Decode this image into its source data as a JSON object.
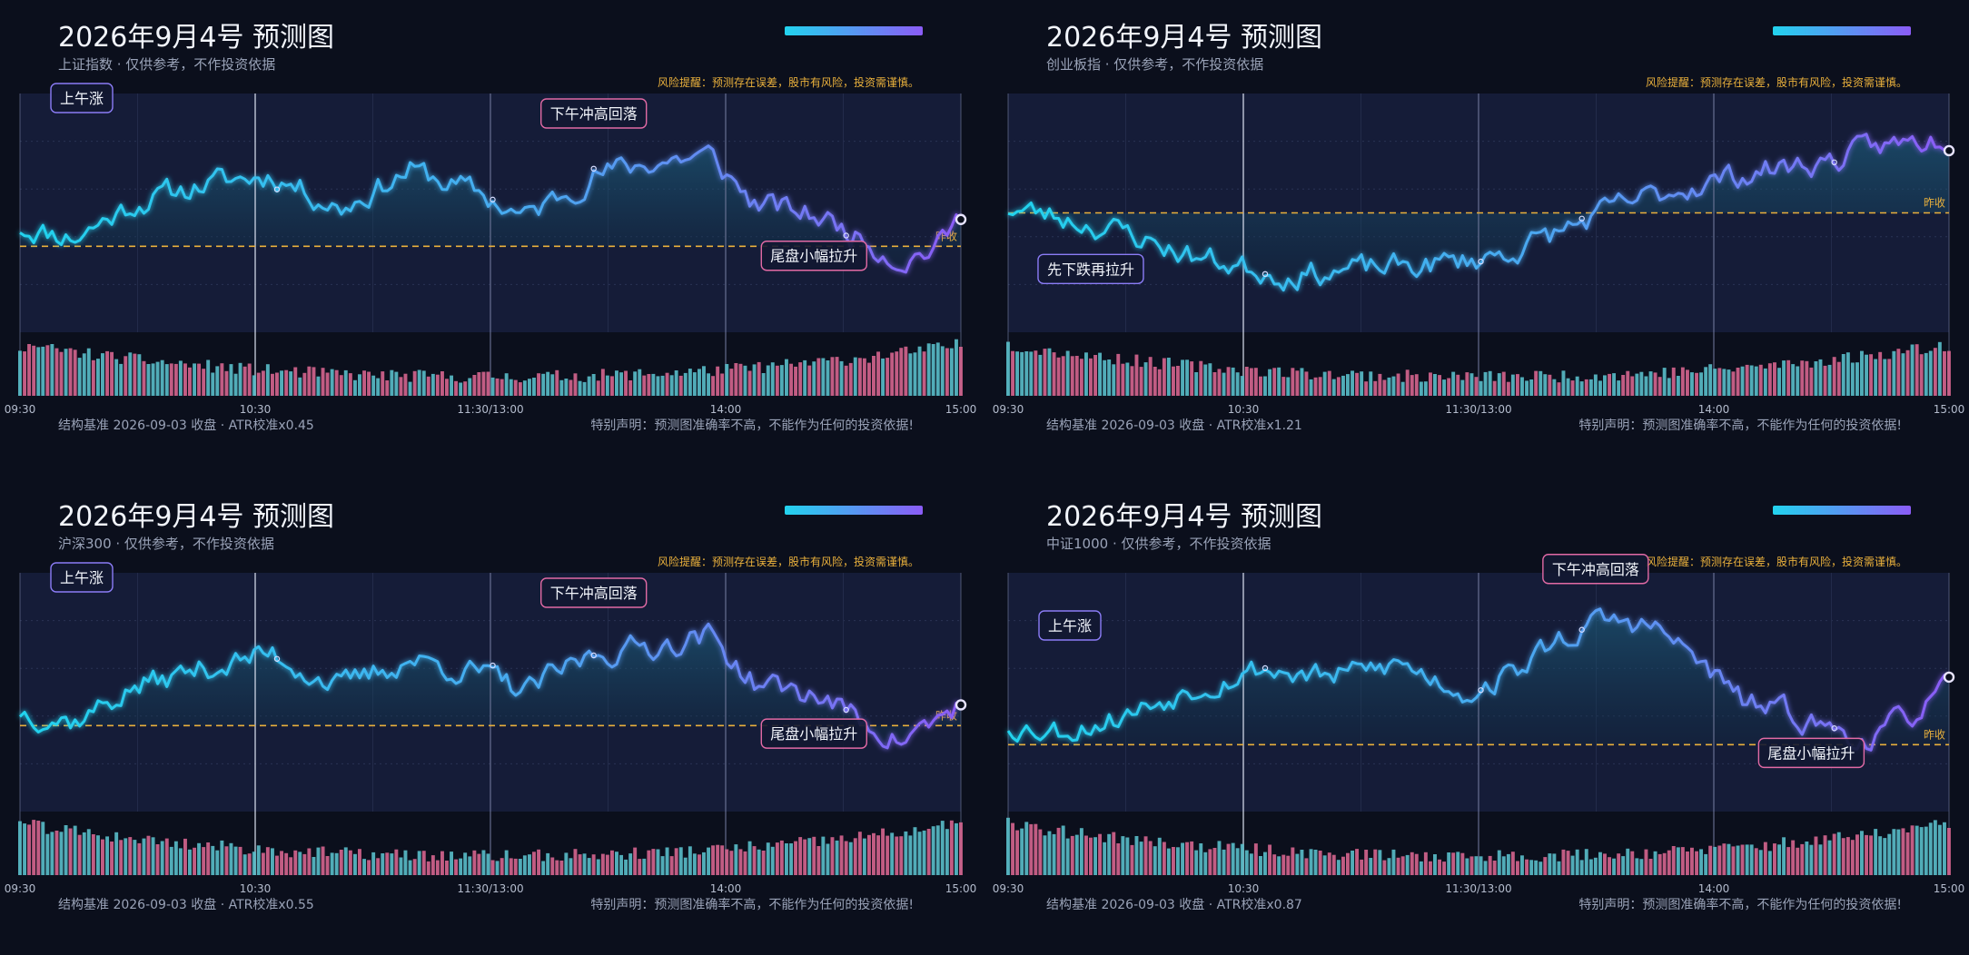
{
  "colors": {
    "background": "#0b0f1c",
    "plot_bg": "#141b34",
    "line_start": "#22d3ee",
    "line_end": "#8b5cf6",
    "prev_close": "#e9b03c",
    "vol_up": "#5ec8d4",
    "vol_down": "#e26a95",
    "ann_up": "#8b7cf6",
    "ann_down": "#e26aa5"
  },
  "x_ticks": [
    "09:30",
    "10:30",
    "11:30/13:00",
    "14:00",
    "15:00"
  ],
  "prev_close_label": "昨收",
  "chart_data": [
    {
      "type": "line",
      "title": "2026年9月4号 预测图",
      "subtitle": "上证指数 · 仅供参考，不作投资依据",
      "risk_note": "风险提醒：预测存在误差，股市有风险，投资需谨慎。",
      "footer_left": "结构基准 2026-09-03 收盘 · ATR校准x0.45",
      "footer_right": "特别声明：预测图准确率不高，不能作为任何的投资依据!",
      "ylim": [
        0,
        100
      ],
      "prev_close": 36,
      "anchors": [
        [
          0,
          44
        ],
        [
          12,
          40
        ],
        [
          25,
          54
        ],
        [
          40,
          62
        ],
        [
          55,
          66
        ],
        [
          70,
          52
        ],
        [
          85,
          68
        ],
        [
          100,
          58
        ],
        [
          110,
          48
        ],
        [
          125,
          66
        ],
        [
          140,
          72
        ],
        [
          150,
          74
        ],
        [
          160,
          54
        ],
        [
          175,
          48
        ],
        [
          185,
          38
        ],
        [
          192,
          30
        ],
        [
          200,
          36
        ],
        [
          205,
          48
        ]
      ],
      "annotations": [
        {
          "label": "上午涨",
          "t": 8,
          "type": "up",
          "pos": "above"
        },
        {
          "label": "下午冲高回落",
          "t": 125,
          "type": "down",
          "pos": "above"
        },
        {
          "label": "尾盘小幅拉升",
          "t": 173,
          "type": "down",
          "pos": "below"
        }
      ],
      "seed": 11
    },
    {
      "type": "line",
      "title": "2026年9月4号 预测图",
      "subtitle": "创业板指 · 仅供参考，不作投资依据",
      "risk_note": "风险提醒：预测存在误差，股市有风险，投资需谨慎。",
      "footer_left": "结构基准 2026-09-03 收盘 · ATR校准x1.21",
      "footer_right": "特别声明：预测图准确率不高，不能作为任何的投资依据!",
      "ylim": [
        0,
        100
      ],
      "prev_close": 50,
      "anchors": [
        [
          0,
          52
        ],
        [
          12,
          48
        ],
        [
          25,
          42
        ],
        [
          40,
          32
        ],
        [
          50,
          28
        ],
        [
          60,
          24
        ],
        [
          75,
          26
        ],
        [
          90,
          28
        ],
        [
          100,
          30
        ],
        [
          110,
          34
        ],
        [
          120,
          42
        ],
        [
          135,
          54
        ],
        [
          150,
          62
        ],
        [
          165,
          68
        ],
        [
          180,
          72
        ],
        [
          190,
          78
        ],
        [
          200,
          80
        ],
        [
          205,
          82
        ]
      ],
      "annotations": [
        {
          "label": "先下跌再拉升",
          "t": 18,
          "type": "up",
          "pos": "below"
        }
      ],
      "seed": 23
    },
    {
      "type": "line",
      "title": "2026年9月4号 预测图",
      "subtitle": "沪深300 · 仅供参考，不作投资依据",
      "risk_note": "风险提醒：预测存在误差，股市有风险，投资需谨慎。",
      "footer_left": "结构基准 2026-09-03 收盘 · ATR校准x0.55",
      "footer_right": "特别声明：预测图准确率不高，不能作为任何的投资依据!",
      "ylim": [
        0,
        100
      ],
      "prev_close": 36,
      "anchors": [
        [
          0,
          42
        ],
        [
          12,
          38
        ],
        [
          25,
          52
        ],
        [
          40,
          60
        ],
        [
          55,
          66
        ],
        [
          70,
          52
        ],
        [
          85,
          64
        ],
        [
          100,
          58
        ],
        [
          110,
          50
        ],
        [
          125,
          66
        ],
        [
          140,
          70
        ],
        [
          150,
          74
        ],
        [
          160,
          54
        ],
        [
          175,
          48
        ],
        [
          185,
          36
        ],
        [
          192,
          30
        ],
        [
          200,
          38
        ],
        [
          205,
          46
        ]
      ],
      "annotations": [
        {
          "label": "上午涨",
          "t": 8,
          "type": "up",
          "pos": "above"
        },
        {
          "label": "下午冲高回落",
          "t": 125,
          "type": "down",
          "pos": "above"
        },
        {
          "label": "尾盘小幅拉升",
          "t": 173,
          "type": "down",
          "pos": "below"
        }
      ],
      "seed": 37
    },
    {
      "type": "line",
      "title": "2026年9月4号 预测图",
      "subtitle": "中证1000 · 仅供参考，不作投资依据",
      "risk_note": "风险提醒：预测存在误差，股市有风险，投资需谨慎。",
      "footer_left": "结构基准 2026-09-03 收盘 · ATR校准x0.87",
      "footer_right": "特别声明：预测图准确率不高，不能作为任何的投资依据!",
      "ylim": [
        0,
        100
      ],
      "prev_close": 28,
      "anchors": [
        [
          0,
          36
        ],
        [
          12,
          34
        ],
        [
          25,
          40
        ],
        [
          40,
          52
        ],
        [
          55,
          60
        ],
        [
          70,
          56
        ],
        [
          85,
          62
        ],
        [
          100,
          50
        ],
        [
          110,
          58
        ],
        [
          120,
          72
        ],
        [
          130,
          80
        ],
        [
          140,
          78
        ],
        [
          150,
          64
        ],
        [
          160,
          46
        ],
        [
          172,
          40
        ],
        [
          180,
          34
        ],
        [
          188,
          30
        ],
        [
          198,
          42
        ],
        [
          205,
          52
        ]
      ],
      "annotations": [
        {
          "label": "上午涨",
          "t": 8,
          "type": "up",
          "pos": "above"
        },
        {
          "label": "下午冲高回落",
          "t": 128,
          "type": "down",
          "pos": "above"
        },
        {
          "label": "尾盘小幅拉升",
          "t": 175,
          "type": "down",
          "pos": "below"
        }
      ],
      "seed": 53
    }
  ]
}
